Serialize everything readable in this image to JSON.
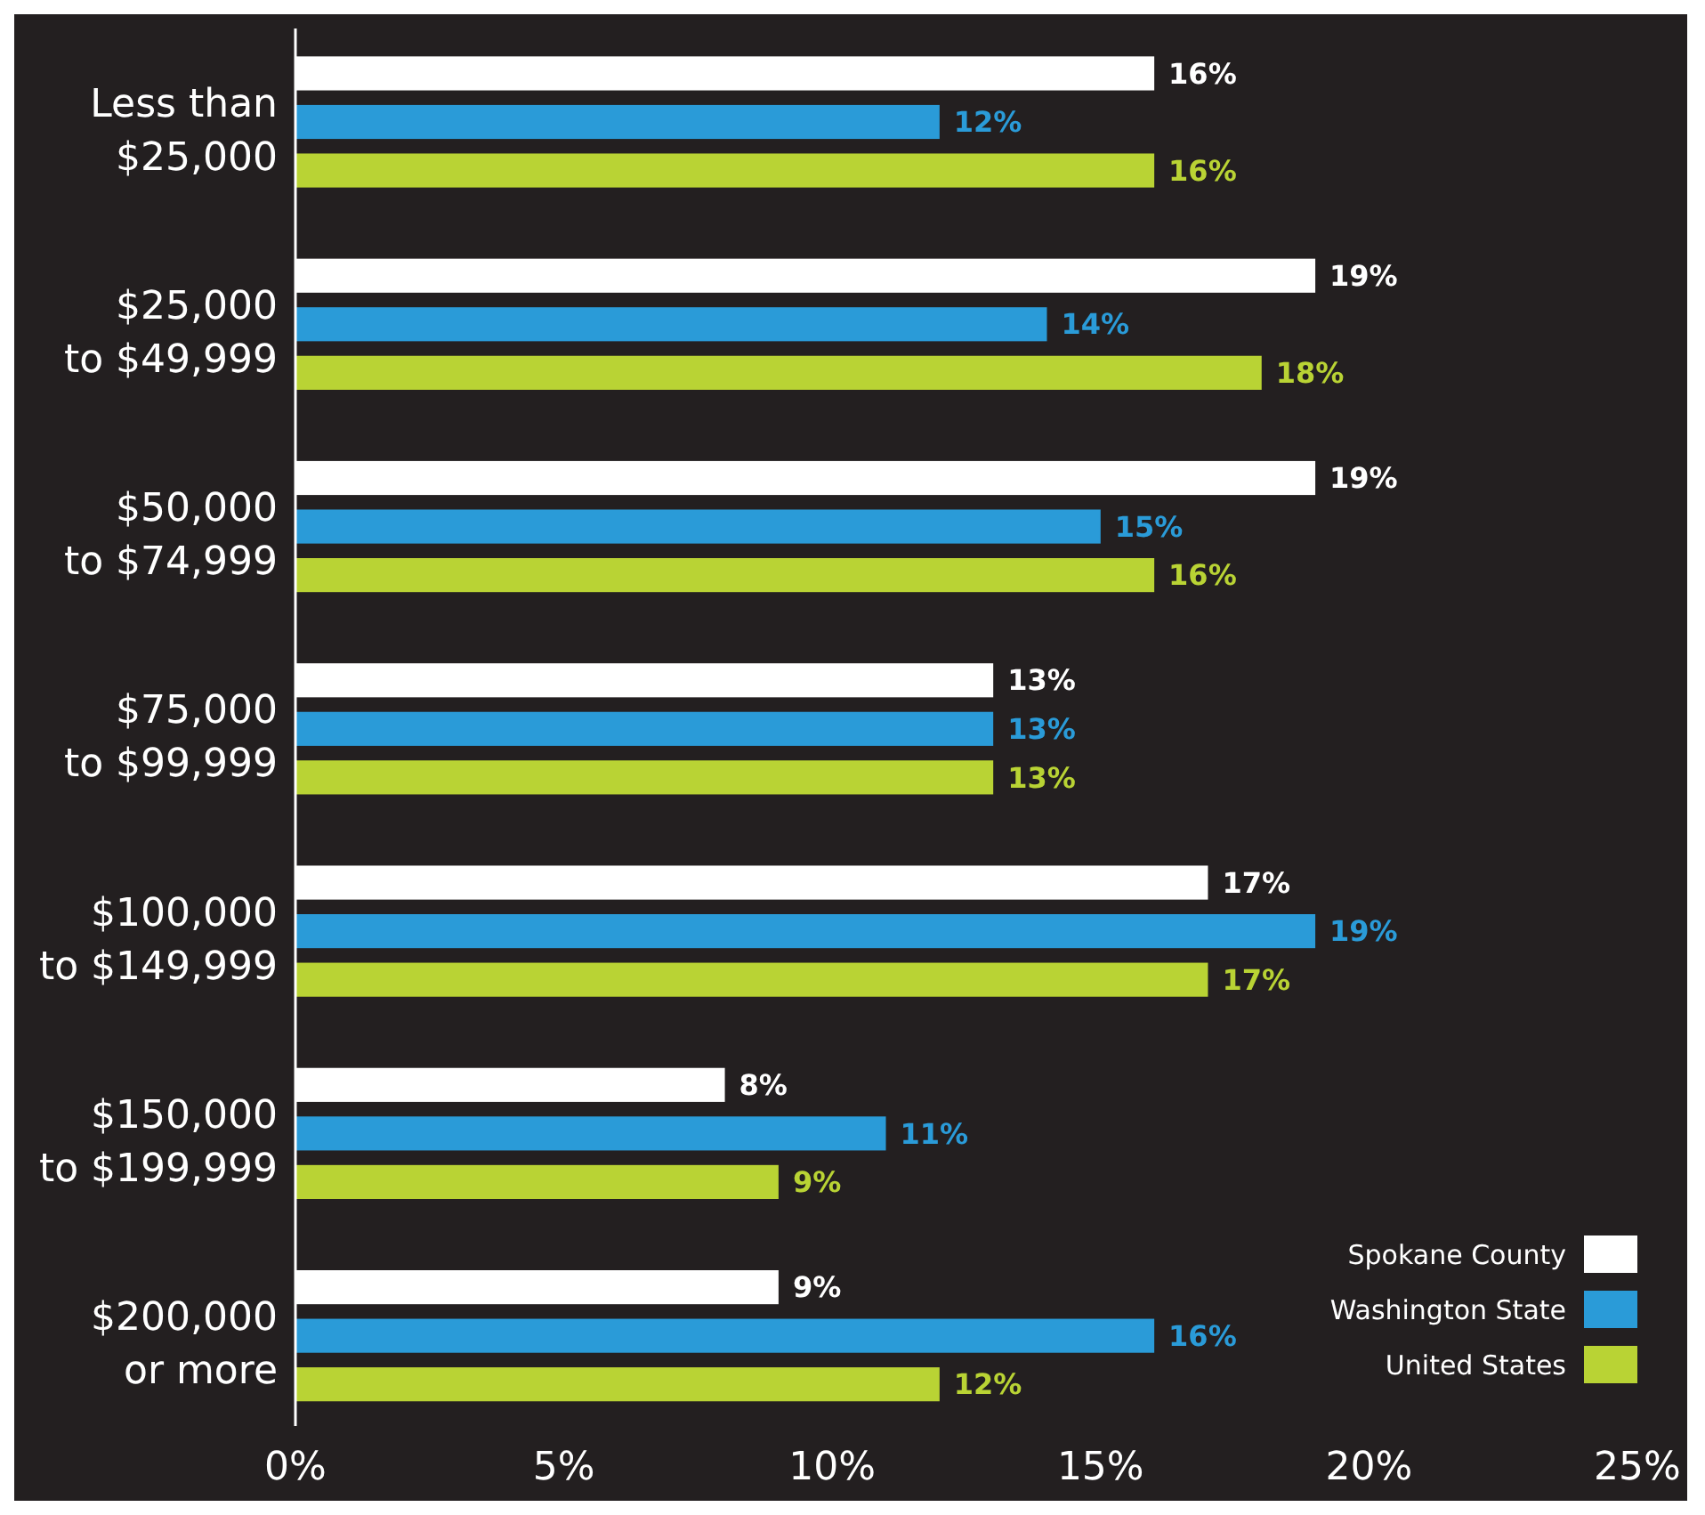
{
  "chart_data": {
    "type": "bar",
    "orientation": "horizontal",
    "categories": [
      "Less than\n$25,000",
      "$25,000\nto $49,999",
      "$50,000\nto $74,999",
      "$75,000\nto $99,999",
      "$100,000\nto $149,999",
      "$150,000\nto $199,999",
      "$200,000\nor more"
    ],
    "series": [
      {
        "name": "Spokane County",
        "color": "#ffffff",
        "values": [
          16,
          19,
          19,
          13,
          17,
          8,
          9
        ],
        "value_labels": [
          "16%",
          "19%",
          "19%",
          "13%",
          "17%",
          "8%",
          "9%"
        ]
      },
      {
        "name": "Washington State",
        "color": "#2a9bd8",
        "values": [
          12,
          14,
          15,
          13,
          19,
          11,
          16
        ],
        "value_labels": [
          "12%",
          "14%",
          "15%",
          "13%",
          "19%",
          "11%",
          "16%"
        ]
      },
      {
        "name": "United States",
        "color": "#b9d334",
        "values": [
          16,
          18,
          16,
          13,
          17,
          9,
          12
        ],
        "value_labels": [
          "16%",
          "18%",
          "16%",
          "13%",
          "17%",
          "9%",
          "12%"
        ]
      }
    ],
    "xlim": [
      0,
      25
    ],
    "xticks": [
      {
        "value": 0,
        "label": "0%"
      },
      {
        "value": 5,
        "label": "5%"
      },
      {
        "value": 10,
        "label": "10%"
      },
      {
        "value": 15,
        "label": "15%"
      },
      {
        "value": 20,
        "label": "20%"
      },
      {
        "value": 25,
        "label": "25%"
      }
    ],
    "grid": false,
    "legend": "bottom right"
  }
}
